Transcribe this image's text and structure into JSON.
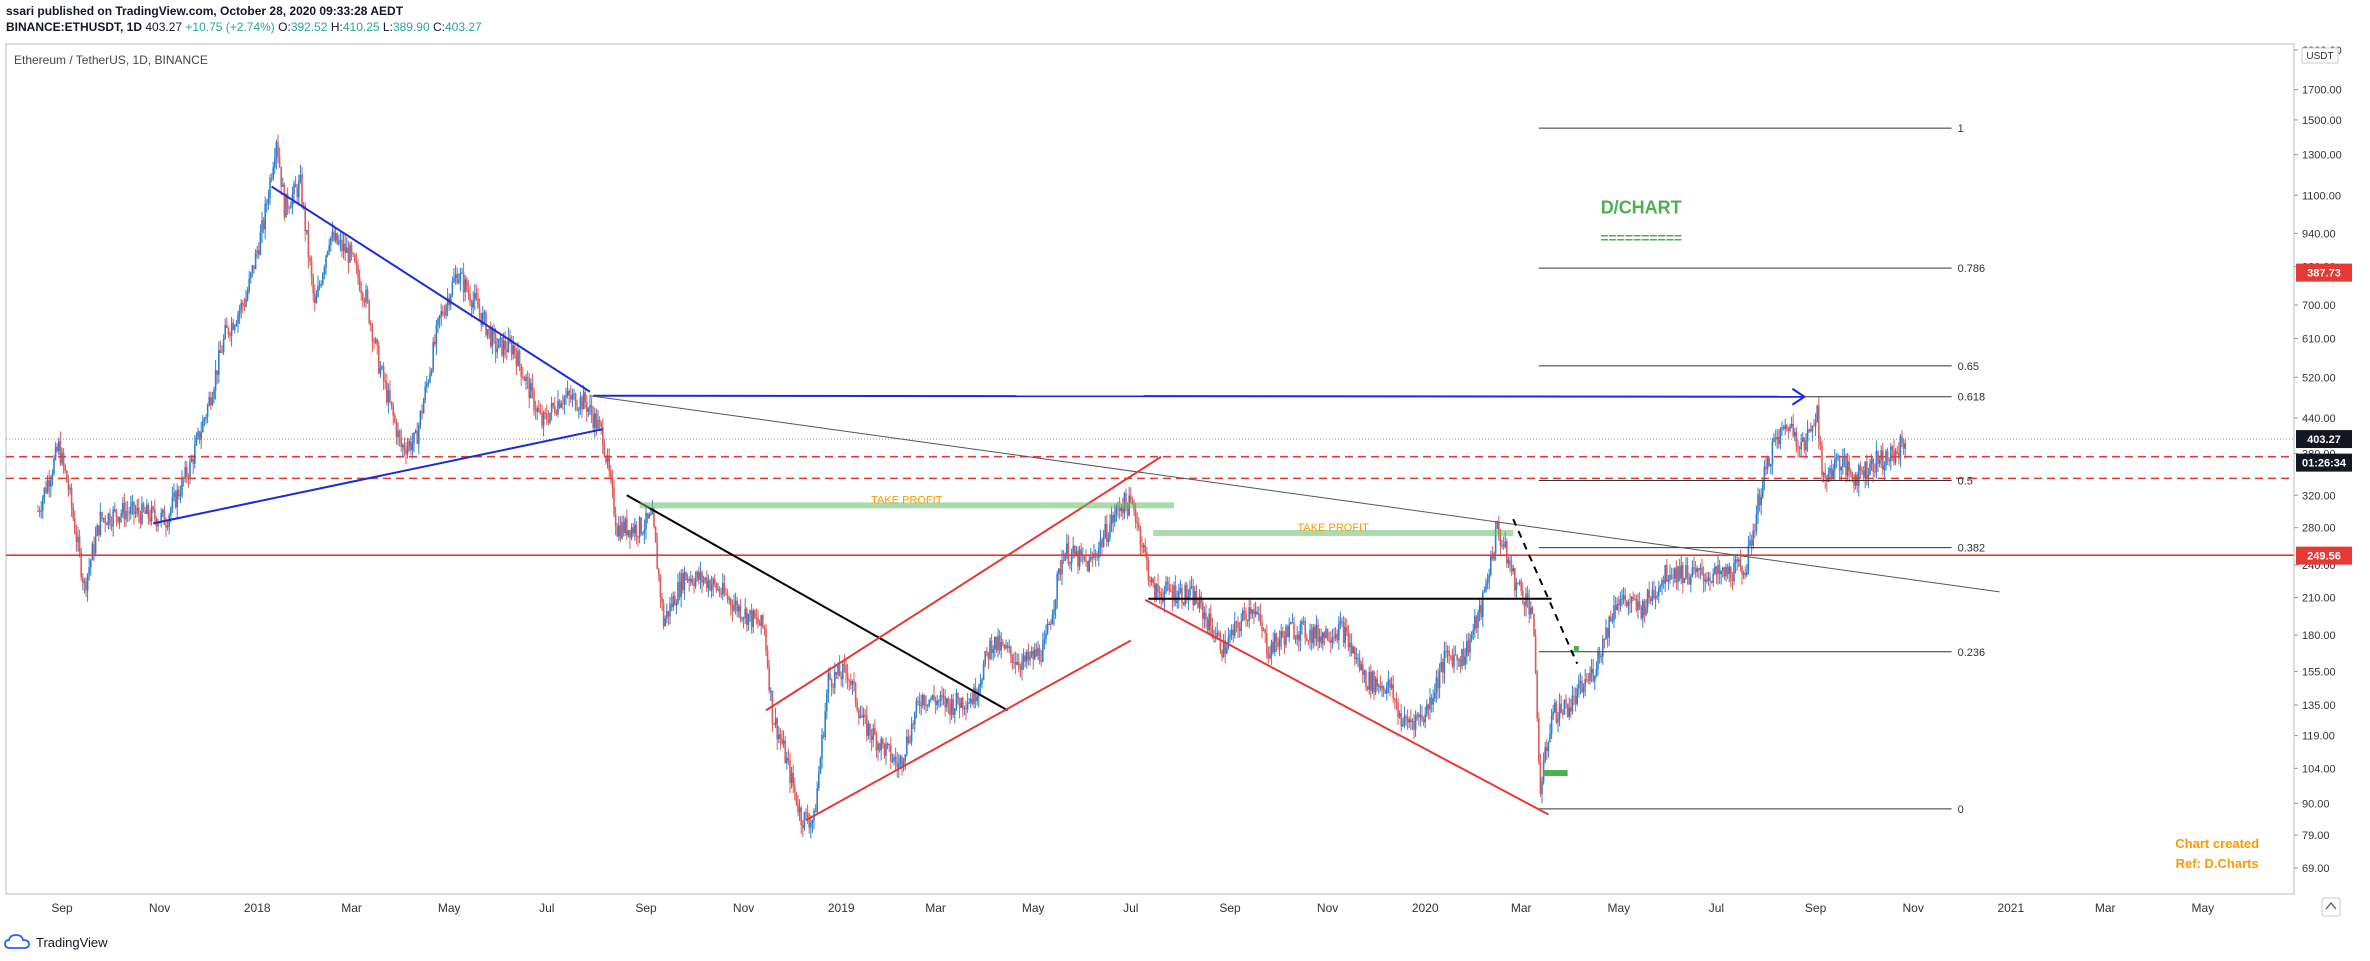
{
  "header": {
    "publisher_line": "ssari published on TradingView.com, October 28, 2020 09:33:28 AEDT",
    "symbol": "BINANCE:ETHUSDT, 1D",
    "last": "403.27",
    "change": "+10.75 (+2.74%)",
    "o_label": "O:",
    "o": "392.52",
    "h_label": "H:",
    "h": "410.25",
    "l_label": "L:",
    "l": "389.90",
    "c_label": "C:",
    "c": "403.27"
  },
  "legend": {
    "title": "Ethereum / TetherUS, 1D, BINANCE"
  },
  "footer": {
    "brand": "TradingView"
  },
  "colors": {
    "up": "#2f7fd0",
    "down": "#e05a5a",
    "blue_line": "#1b2bd8",
    "red": "#e53935",
    "green": "#66bb6a",
    "orange": "#ff9800",
    "black": "#000000",
    "grid": "#eeeeee"
  },
  "chart_data": {
    "type": "candlestick",
    "title": "Ethereum / TetherUS, 1D, BINANCE",
    "y_scale": "log",
    "y_unit": "USDT",
    "ylim": [
      62,
      2050
    ],
    "xlim": [
      "2017-07-28",
      "2021-06-27"
    ],
    "x_ticks": [
      {
        "date": "2017-09-01",
        "label": "Sep"
      },
      {
        "date": "2017-11-01",
        "label": "Nov"
      },
      {
        "date": "2018-01-01",
        "label": "2018"
      },
      {
        "date": "2018-03-01",
        "label": "Mar"
      },
      {
        "date": "2018-05-01",
        "label": "May"
      },
      {
        "date": "2018-07-01",
        "label": "Jul"
      },
      {
        "date": "2018-09-01",
        "label": "Sep"
      },
      {
        "date": "2018-11-01",
        "label": "Nov"
      },
      {
        "date": "2019-01-01",
        "label": "2019"
      },
      {
        "date": "2019-03-01",
        "label": "Mar"
      },
      {
        "date": "2019-05-01",
        "label": "May"
      },
      {
        "date": "2019-07-01",
        "label": "Jul"
      },
      {
        "date": "2019-09-01",
        "label": "Sep"
      },
      {
        "date": "2019-11-01",
        "label": "Nov"
      },
      {
        "date": "2020-01-01",
        "label": "2020"
      },
      {
        "date": "2020-03-01",
        "label": "Mar"
      },
      {
        "date": "2020-05-01",
        "label": "May"
      },
      {
        "date": "2020-07-01",
        "label": "Jul"
      },
      {
        "date": "2020-09-01",
        "label": "Sep"
      },
      {
        "date": "2020-11-01",
        "label": "Nov"
      },
      {
        "date": "2021-01-01",
        "label": "2021"
      },
      {
        "date": "2021-03-01",
        "label": "Mar"
      },
      {
        "date": "2021-05-01",
        "label": "May"
      }
    ],
    "y_ticks": [
      {
        "v": 2000,
        "label": "2000.00"
      },
      {
        "v": 1700,
        "label": "1700.00"
      },
      {
        "v": 1500,
        "label": "1500.00"
      },
      {
        "v": 1300,
        "label": "1300.00"
      },
      {
        "v": 1100,
        "label": "1100.00"
      },
      {
        "v": 940,
        "label": "940.00"
      },
      {
        "v": 820,
        "label": "820.00"
      },
      {
        "v": 700,
        "label": "700.00"
      },
      {
        "v": 610,
        "label": "610.00"
      },
      {
        "v": 520,
        "label": "520.00"
      },
      {
        "v": 440,
        "label": "440.00"
      },
      {
        "v": 380,
        "label": "380.00"
      },
      {
        "v": 320,
        "label": "320.00"
      },
      {
        "v": 280,
        "label": "280.00"
      },
      {
        "v": 240,
        "label": "240.00"
      },
      {
        "v": 210,
        "label": "210.00"
      },
      {
        "v": 180,
        "label": "180.00"
      },
      {
        "v": 155,
        "label": "155.00"
      },
      {
        "v": 135,
        "label": "135.00"
      },
      {
        "v": 119,
        "label": "119.00"
      },
      {
        "v": 104,
        "label": "104.00"
      },
      {
        "v": 90,
        "label": "90.00"
      },
      {
        "v": 79,
        "label": "79.00"
      },
      {
        "v": 69,
        "label": "69.00"
      }
    ],
    "axis_unit_label": "USDT",
    "price_tags": [
      {
        "v": 387.73,
        "label": "387.73",
        "bg": "#e53935",
        "fg": "#ffffff",
        "at": 800
      },
      {
        "v": 403.27,
        "label": "403.27",
        "bg": "#131722",
        "fg": "#ffffff"
      },
      {
        "v": 366,
        "label": "01:26:34",
        "bg": "#131722",
        "fg": "#ffffff"
      },
      {
        "v": 249.56,
        "label": "249.56",
        "bg": "#e53935",
        "fg": "#ffffff"
      }
    ],
    "price_path": [
      [
        "2017-08-17",
        300
      ],
      [
        "2017-08-30",
        390
      ],
      [
        "2017-09-05",
        330
      ],
      [
        "2017-09-15",
        220
      ],
      [
        "2017-09-25",
        290
      ],
      [
        "2017-10-10",
        300
      ],
      [
        "2017-10-25",
        295
      ],
      [
        "2017-11-05",
        290
      ],
      [
        "2017-11-20",
        360
      ],
      [
        "2017-12-01",
        460
      ],
      [
        "2017-12-12",
        620
      ],
      [
        "2017-12-25",
        720
      ],
      [
        "2018-01-05",
        980
      ],
      [
        "2018-01-13",
        1400
      ],
      [
        "2018-01-18",
        1050
      ],
      [
        "2018-01-28",
        1150
      ],
      [
        "2018-02-06",
        690
      ],
      [
        "2018-02-15",
        930
      ],
      [
        "2018-02-28",
        860
      ],
      [
        "2018-03-10",
        720
      ],
      [
        "2018-03-18",
        550
      ],
      [
        "2018-04-01",
        390
      ],
      [
        "2018-04-10",
        400
      ],
      [
        "2018-04-25",
        660
      ],
      [
        "2018-05-06",
        800
      ],
      [
        "2018-05-18",
        700
      ],
      [
        "2018-05-30",
        590
      ],
      [
        "2018-06-10",
        590
      ],
      [
        "2018-06-28",
        430
      ],
      [
        "2018-07-10",
        480
      ],
      [
        "2018-07-25",
        470
      ],
      [
        "2018-08-05",
        410
      ],
      [
        "2018-08-14",
        280
      ],
      [
        "2018-08-28",
        280
      ],
      [
        "2018-09-05",
        290
      ],
      [
        "2018-09-12",
        190
      ],
      [
        "2018-09-25",
        230
      ],
      [
        "2018-10-10",
        225
      ],
      [
        "2018-10-30",
        200
      ],
      [
        "2018-11-14",
        185
      ],
      [
        "2018-11-19",
        130
      ],
      [
        "2018-11-25",
        115
      ],
      [
        "2018-12-07",
        85
      ],
      [
        "2018-12-15",
        84
      ],
      [
        "2018-12-24",
        150
      ],
      [
        "2019-01-05",
        155
      ],
      [
        "2019-01-15",
        125
      ],
      [
        "2019-02-06",
        105
      ],
      [
        "2019-02-20",
        140
      ],
      [
        "2019-03-10",
        135
      ],
      [
        "2019-03-25",
        140
      ],
      [
        "2019-04-05",
        175
      ],
      [
        "2019-04-25",
        160
      ],
      [
        "2019-05-08",
        170
      ],
      [
        "2019-05-20",
        255
      ],
      [
        "2019-06-05",
        240
      ],
      [
        "2019-06-25",
        310
      ],
      [
        "2019-07-03",
        305
      ],
      [
        "2019-07-15",
        215
      ],
      [
        "2019-07-30",
        215
      ],
      [
        "2019-08-10",
        210
      ],
      [
        "2019-08-28",
        170
      ],
      [
        "2019-09-15",
        205
      ],
      [
        "2019-09-25",
        170
      ],
      [
        "2019-10-10",
        185
      ],
      [
        "2019-10-26",
        180
      ],
      [
        "2019-11-10",
        185
      ],
      [
        "2019-11-25",
        150
      ],
      [
        "2019-12-10",
        145
      ],
      [
        "2019-12-18",
        125
      ],
      [
        "2020-01-01",
        130
      ],
      [
        "2020-01-14",
        165
      ],
      [
        "2020-01-25",
        165
      ],
      [
        "2020-02-05",
        200
      ],
      [
        "2020-02-15",
        280
      ],
      [
        "2020-02-26",
        225
      ],
      [
        "2020-03-08",
        200
      ],
      [
        "2020-03-12",
        110
      ],
      [
        "2020-03-13",
        95
      ],
      [
        "2020-03-20",
        130
      ],
      [
        "2020-04-01",
        135
      ],
      [
        "2020-04-15",
        155
      ],
      [
        "2020-04-30",
        210
      ],
      [
        "2020-05-15",
        200
      ],
      [
        "2020-06-01",
        235
      ],
      [
        "2020-06-20",
        230
      ],
      [
        "2020-07-05",
        230
      ],
      [
        "2020-07-20",
        240
      ],
      [
        "2020-07-28",
        320
      ],
      [
        "2020-08-05",
        390
      ],
      [
        "2020-08-15",
        430
      ],
      [
        "2020-08-25",
        390
      ],
      [
        "2020-09-02",
        460
      ],
      [
        "2020-09-05",
        340
      ],
      [
        "2020-09-15",
        370
      ],
      [
        "2020-09-25",
        345
      ],
      [
        "2020-10-10",
        370
      ],
      [
        "2020-10-20",
        375
      ],
      [
        "2020-10-27",
        403
      ]
    ],
    "fib_levels": [
      {
        "v": 1450,
        "label": "1"
      },
      {
        "v": 815,
        "label": "0.786"
      },
      {
        "v": 545,
        "label": "0.65"
      },
      {
        "v": 480,
        "label": "0.618"
      },
      {
        "v": 340,
        "label": "0.5"
      },
      {
        "v": 258,
        "label": "0.382"
      },
      {
        "v": 168,
        "label": "0.236"
      },
      {
        "v": 88,
        "label": "0"
      }
    ],
    "fib_range": {
      "x0": "2020-03-12",
      "x1": "2020-11-25"
    },
    "hlines": [
      {
        "v": 375,
        "style": "dashed",
        "color": "#e53935"
      },
      {
        "v": 343,
        "style": "dashed",
        "color": "#e53935"
      },
      {
        "v": 250,
        "style": "solid",
        "color": "#e53935"
      }
    ],
    "trendlines": [
      {
        "color": "#1b2bd8",
        "w": 2,
        "p": [
          [
            "2018-01-10",
            1140
          ],
          [
            "2018-07-28",
            490
          ]
        ]
      },
      {
        "color": "#1b2bd8",
        "w": 2,
        "p": [
          [
            "2017-10-28",
            285
          ],
          [
            "2018-08-05",
            420
          ]
        ]
      },
      {
        "color": "#1b2bd8",
        "w": 2,
        "p": [
          [
            "2018-07-30",
            482
          ],
          [
            "2020-08-25",
            480
          ]
        ],
        "arrow": true
      },
      {
        "color": "#555555",
        "w": 1,
        "p": [
          [
            "2018-07-28",
            482
          ],
          [
            "2020-12-25",
            215
          ]
        ]
      },
      {
        "color": "#000000",
        "w": 2,
        "p": [
          [
            "2018-08-20",
            320
          ],
          [
            "2019-04-15",
            132
          ]
        ]
      },
      {
        "color": "#e53935",
        "w": 2,
        "p": [
          [
            "2018-11-15",
            132
          ],
          [
            "2019-07-20",
            375
          ]
        ]
      },
      {
        "color": "#e53935",
        "w": 2,
        "p": [
          [
            "2018-12-10",
            84
          ],
          [
            "2019-07-01",
            176
          ]
        ]
      },
      {
        "color": "#e53935",
        "w": 2,
        "p": [
          [
            "2019-07-10",
            208
          ],
          [
            "2020-03-18",
            86
          ]
        ]
      },
      {
        "color": "#000000",
        "w": 2,
        "p": [
          [
            "2019-07-12",
            209
          ],
          [
            "2020-03-20",
            209
          ]
        ]
      },
      {
        "color": "#000000",
        "w": 2,
        "dash": true,
        "p": [
          [
            "2020-02-25",
            290
          ],
          [
            "2020-04-05",
            160
          ]
        ]
      }
    ],
    "zones": [
      {
        "label": "TAKE PROFIT",
        "color": "#66bb6a",
        "v": 307,
        "x0": "2018-08-28",
        "x1": "2019-07-28"
      },
      {
        "label": "TAKE PROFIT",
        "color": "#66bb6a",
        "v": 274,
        "x0": "2019-07-15",
        "x1": "2020-02-25"
      }
    ],
    "markers": [
      {
        "color": "#4caf50",
        "v": 102,
        "x0": "2020-03-15",
        "x1": "2020-03-30"
      },
      {
        "color": "#4caf50",
        "v": 170,
        "x0": "2020-04-03",
        "x1": "2020-04-06"
      }
    ],
    "annotations": [
      {
        "text": "D/CHART",
        "color": "#4caf50",
        "v": 1020,
        "x": "2020-05-15",
        "size": 18
      },
      {
        "text": "==========",
        "color": "#4caf50",
        "v": 905,
        "x": "2020-05-15",
        "size": 14
      },
      {
        "text": "Chart created",
        "color": "#ff9800",
        "v": 75,
        "x": "2021-05-10",
        "size": 13
      },
      {
        "text": "Ref: D.Charts",
        "color": "#ff9800",
        "v": 69,
        "x": "2021-05-10",
        "size": 13
      }
    ]
  }
}
